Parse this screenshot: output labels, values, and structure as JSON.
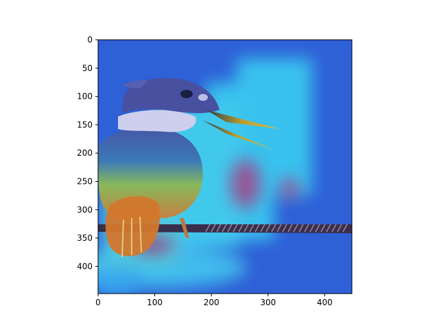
{
  "figure": {
    "background": "#ffffff",
    "colormap": "jet",
    "image_subject": "bird (kingfisher) perched on a twisted wire rope, overlaid with a jet-colormap heatmap",
    "x_axis": {
      "ticks": [
        "0",
        "100",
        "200",
        "300",
        "400"
      ],
      "range": [
        0,
        448
      ]
    },
    "y_axis": {
      "ticks": [
        "0",
        "50",
        "100",
        "150",
        "200",
        "250",
        "300",
        "350",
        "400"
      ],
      "range": [
        0,
        448
      ],
      "inverted": true
    }
  }
}
